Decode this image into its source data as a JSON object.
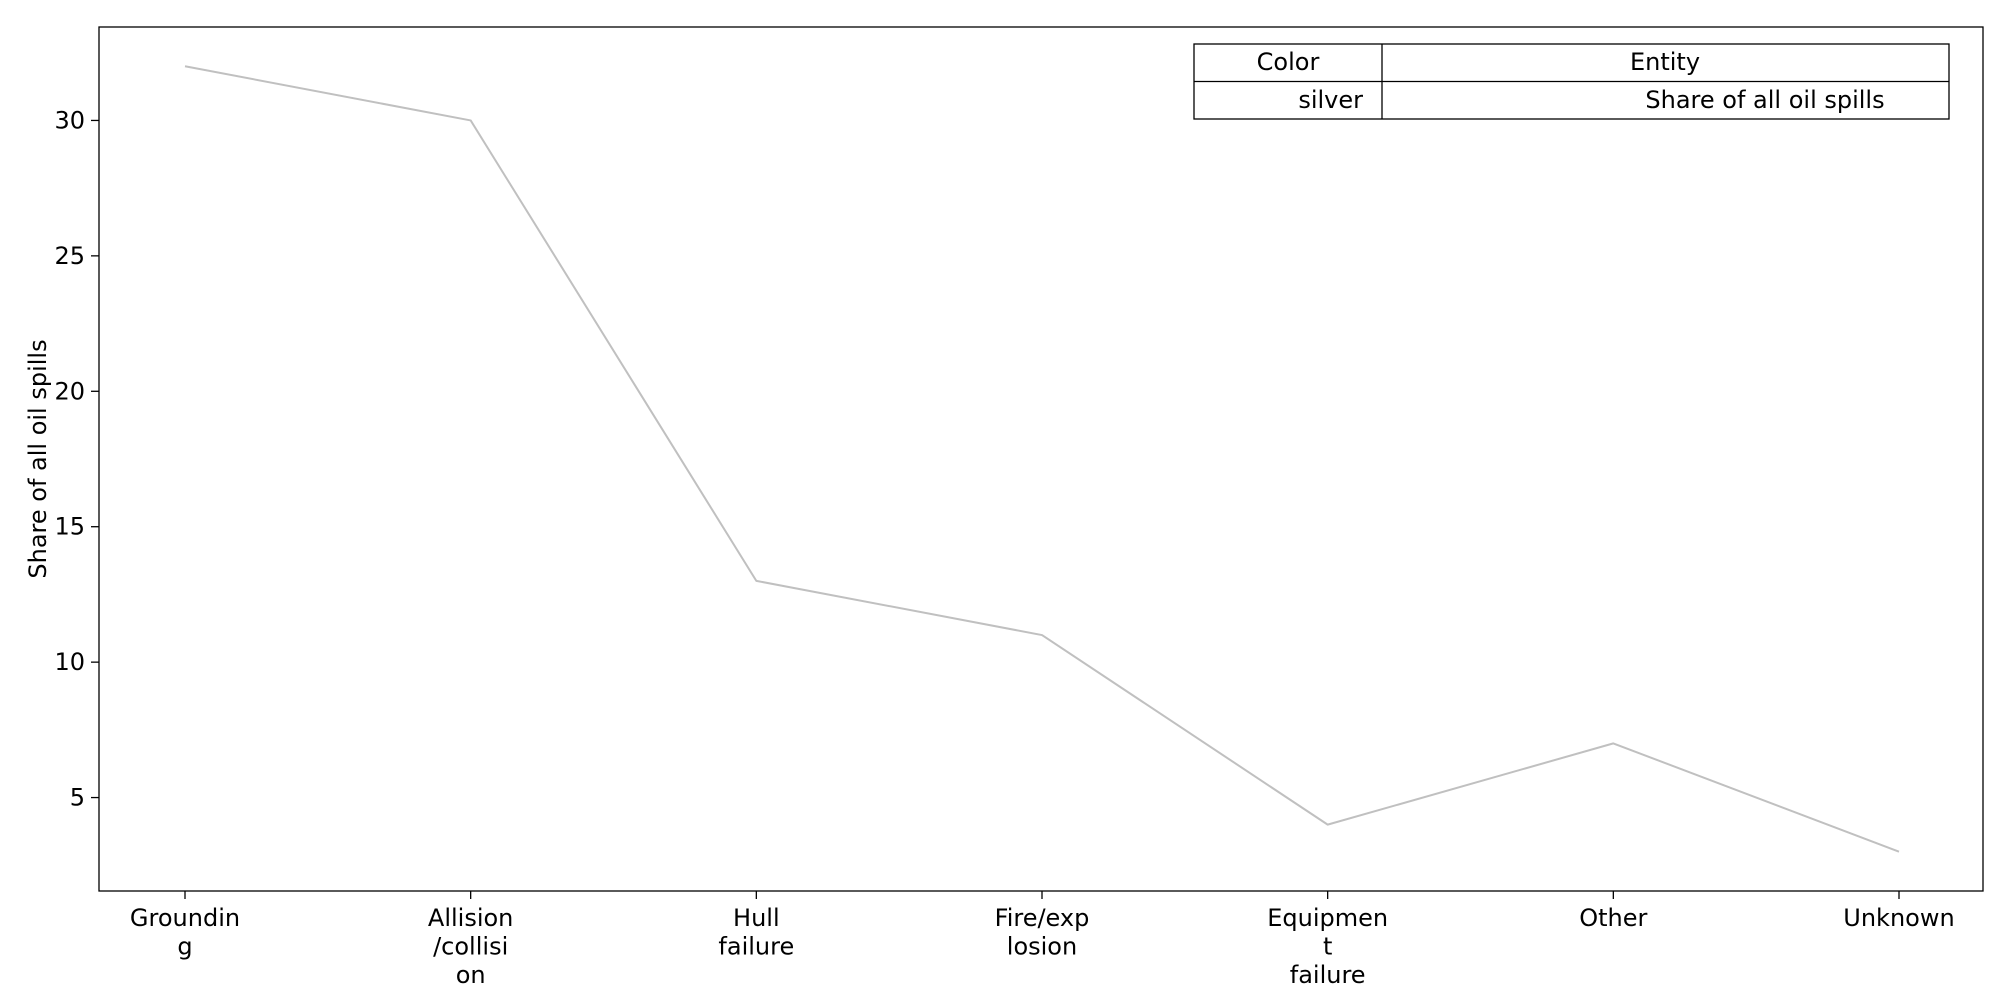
{
  "chart_data": {
    "type": "line",
    "categories": [
      [
        "Groundin",
        "g"
      ],
      [
        "Allision",
        "/collisi",
        "on"
      ],
      [
        "Hull",
        "failure"
      ],
      [
        "Fire/exp",
        "losion"
      ],
      [
        "Equipmen",
        "t",
        "failure"
      ],
      [
        "Other"
      ],
      [
        "Unknown"
      ]
    ],
    "series": [
      {
        "name": "Share of all oil spills",
        "color": "#c0c0c0",
        "values": [
          32,
          30,
          13,
          11,
          4,
          7,
          3
        ]
      }
    ],
    "ylabel": "Share of all oil spills",
    "ylim": [
      1.55,
      33.45
    ],
    "yticks": [
      5,
      10,
      15,
      20,
      25,
      30
    ],
    "grid": false,
    "legend": {
      "placement": "top-right",
      "headers": [
        "Color",
        "Entity"
      ],
      "rows": [
        [
          "silver",
          "Share of all oil spills"
        ]
      ]
    }
  }
}
